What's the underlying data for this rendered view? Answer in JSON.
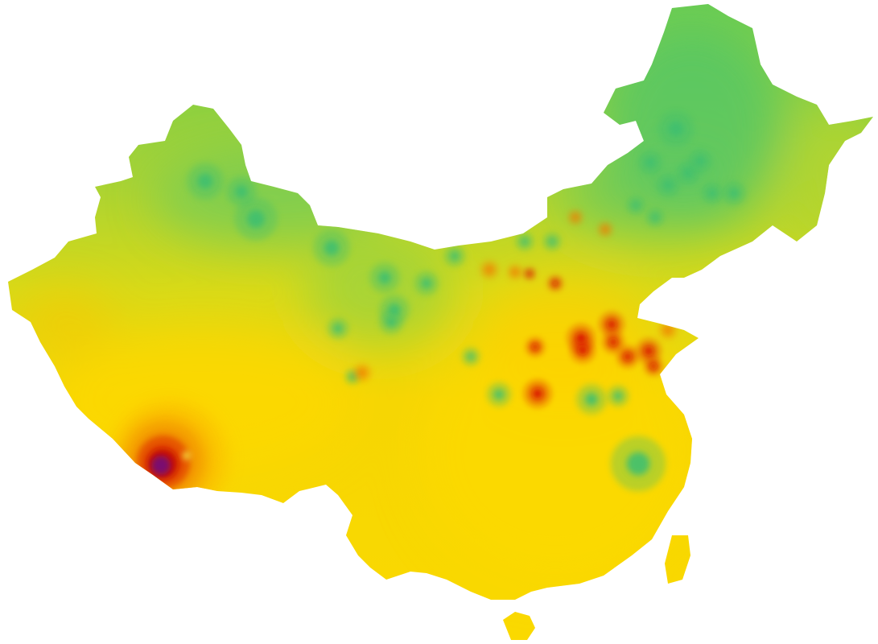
{
  "map": {
    "type": "choropleth-heatmap",
    "region": "China",
    "legend": "none",
    "labels": "none",
    "color_scale": {
      "low": "#3fbf6f",
      "mid_low": "#8fcf3a",
      "mid": "#d8da18",
      "mid_high": "#fcd600",
      "high": "#f07c00",
      "very_high": "#d81000",
      "peak": "#7a1070"
    }
  }
}
